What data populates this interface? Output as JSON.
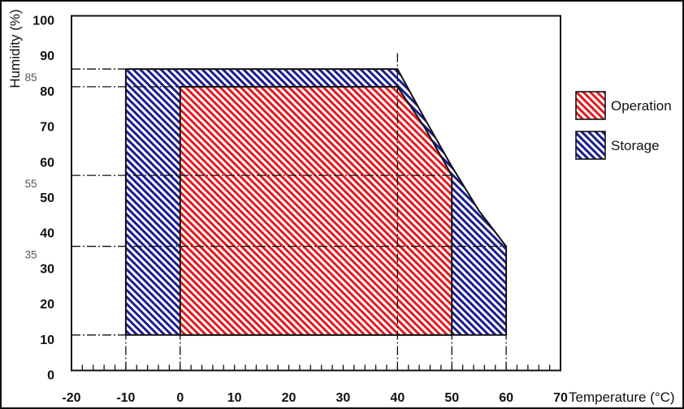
{
  "chart_data": {
    "type": "area",
    "xlabel": "Temperature (°C)",
    "ylabel": "Humidity (%)",
    "xlim": [
      -20,
      70
    ],
    "ylim": [
      0,
      100
    ],
    "xticks": [
      -20,
      -10,
      0,
      10,
      20,
      30,
      40,
      50,
      60,
      70
    ],
    "yticks": [
      0,
      10,
      20,
      30,
      40,
      50,
      60,
      70,
      80,
      90,
      100
    ],
    "ref_yticks": [
      85,
      55,
      35
    ],
    "grid": false,
    "legend": "right",
    "series": [
      {
        "name": "Operation",
        "color": "#e3191f",
        "points": [
          [
            0,
            10
          ],
          [
            0,
            80
          ],
          [
            40,
            80
          ],
          [
            45,
            68.5
          ],
          [
            50,
            55
          ],
          [
            50,
            10
          ]
        ]
      },
      {
        "name": "Storage",
        "color": "#1c1c8f",
        "points": [
          [
            -10,
            10
          ],
          [
            -10,
            85
          ],
          [
            40,
            85
          ],
          [
            45,
            71
          ],
          [
            50,
            57.5
          ],
          [
            55,
            45
          ],
          [
            60,
            35
          ],
          [
            60,
            10
          ]
        ]
      }
    ],
    "guides": {
      "horizontal": [
        {
          "y": 85,
          "x": -10
        },
        {
          "y": 80,
          "x": 0
        },
        {
          "y": 55,
          "x": 50
        },
        {
          "y": 35,
          "x": 60
        },
        {
          "y": 10,
          "x": -10
        }
      ],
      "vertical": [
        {
          "x": -10,
          "y": 10
        },
        {
          "x": 0,
          "y": 10
        },
        {
          "x": 40,
          "y": 90
        },
        {
          "x": 50,
          "y": 10
        },
        {
          "x": 60,
          "y": 10
        }
      ]
    }
  }
}
